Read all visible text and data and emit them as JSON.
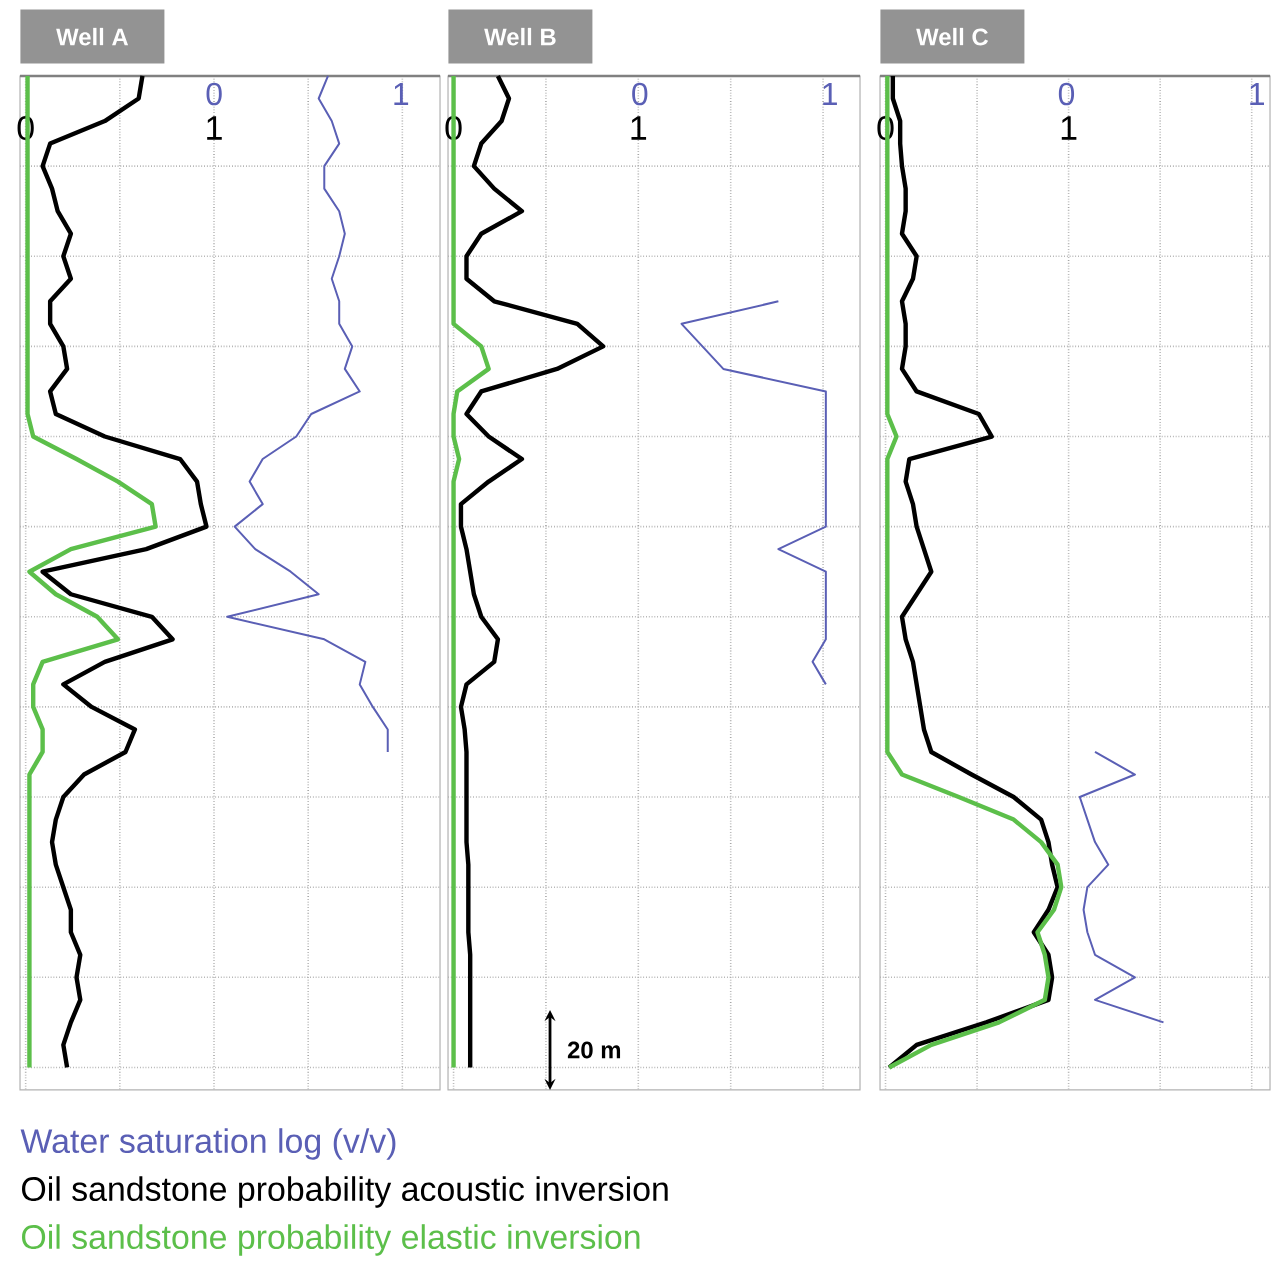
{
  "chart_data": [
    {
      "type": "line",
      "title": "Well A",
      "orientation": "horizontal",
      "legend": "bottom",
      "grid": true,
      "tick_labels": "x",
      "categories": [
        null,
        null,
        null,
        null,
        null,
        null,
        null,
        null,
        null,
        null,
        null,
        null,
        null,
        null,
        null,
        null,
        null,
        null,
        null,
        null,
        null,
        null,
        null,
        null,
        null,
        null,
        null,
        null,
        null,
        null,
        null,
        null,
        null,
        null,
        null,
        null,
        null,
        null,
        null,
        null,
        null,
        null,
        null,
        null,
        null
      ],
      "xlim": [
        -0.03,
        2.2
      ],
      "xticks": [
        0,
        {
          "value": 0.5,
          "label": null
        },
        1,
        {
          "value": 1.5,
          "label": null
        },
        {
          "value": 2,
          "label": null
        }
      ],
      "x2lim": [
        -1.04,
        1.21
      ],
      "x2ticks": [
        0,
        1
      ],
      "series": [
        {
          "name": "Water saturation log (v/v)",
          "color": "#5a5fb5",
          "axis": "x2",
          "values": [
            0.61,
            0.56,
            0.63,
            0.67,
            0.59,
            0.59,
            0.67,
            0.7,
            0.67,
            0.63,
            0.67,
            0.67,
            0.74,
            0.7,
            0.78,
            0.52,
            0.44,
            0.26,
            0.19,
            0.26,
            0.11,
            0.22,
            0.41,
            0.56,
            0.07,
            0.59,
            0.81,
            0.78,
            0.85,
            0.93,
            0.93,
            null,
            null,
            null,
            null,
            null,
            null,
            null,
            null,
            null,
            null,
            null,
            null,
            null,
            null
          ]
        },
        {
          "name": "Oil sandstone probability acoustic inversion",
          "color": "#000000",
          "values": [
            0.62,
            0.6,
            0.42,
            0.13,
            0.09,
            0.14,
            0.17,
            0.24,
            0.2,
            0.24,
            0.13,
            0.13,
            0.2,
            0.22,
            0.13,
            0.16,
            0.42,
            0.82,
            0.91,
            0.93,
            0.96,
            0.64,
            0.09,
            0.24,
            0.67,
            0.78,
            0.42,
            0.2,
            0.35,
            0.58,
            0.53,
            0.31,
            0.2,
            0.16,
            0.14,
            0.16,
            0.2,
            0.24,
            0.24,
            0.29,
            0.27,
            0.29,
            0.24,
            0.2,
            0.22
          ]
        },
        {
          "name": "Oil sandstone probability elastic inversion",
          "color": "#5cbf4a",
          "values": [
            0.01,
            0.01,
            0.01,
            0.01,
            0.01,
            0.01,
            0.01,
            0.01,
            0.01,
            0.01,
            0.01,
            0.01,
            0.01,
            0.01,
            0.01,
            0.01,
            0.04,
            0.27,
            0.49,
            0.67,
            0.69,
            0.24,
            0.02,
            0.16,
            0.38,
            0.49,
            0.09,
            0.04,
            0.04,
            0.09,
            0.09,
            0.02,
            0.02,
            0.02,
            0.02,
            0.02,
            0.02,
            0.02,
            0.02,
            0.02,
            0.02,
            0.02,
            0.02,
            0.02,
            0.02
          ]
        }
      ]
    },
    {
      "type": "line",
      "title": "Well B",
      "orientation": "horizontal",
      "grid": true,
      "tick_labels": "x",
      "annotations": [
        "20 m"
      ],
      "categories": [
        null,
        null,
        null,
        null,
        null,
        null,
        null,
        null,
        null,
        null,
        null,
        null,
        null,
        null,
        null,
        null,
        null,
        null,
        null,
        null,
        null,
        null,
        null,
        null,
        null,
        null,
        null,
        null,
        null,
        null,
        null,
        null,
        null,
        null,
        null,
        null,
        null,
        null,
        null,
        null,
        null,
        null,
        null,
        null,
        null
      ],
      "xlim": [
        -0.03,
        2.2
      ],
      "xticks": [
        0,
        {
          "value": 0.5,
          "label": null
        },
        1,
        {
          "value": 1.5,
          "label": null
        },
        {
          "value": 2,
          "label": null
        }
      ],
      "x2lim": [
        -1.01,
        1.16
      ],
      "x2ticks": [
        0,
        1
      ],
      "series": [
        {
          "color": "#5a5fb5",
          "axis": "x2",
          "values": [
            null,
            null,
            null,
            null,
            null,
            null,
            null,
            null,
            null,
            null,
            0.73,
            0.22,
            0.33,
            0.44,
            0.98,
            0.98,
            0.98,
            0.98,
            0.98,
            0.98,
            0.98,
            0.73,
            0.98,
            0.98,
            0.98,
            0.98,
            0.91,
            0.98,
            null,
            null,
            null,
            null,
            null,
            null,
            null,
            null,
            null,
            null,
            null,
            null,
            null,
            null,
            null,
            null,
            null
          ]
        },
        {
          "color": "#000000",
          "values": [
            0.24,
            0.3,
            0.26,
            0.15,
            0.11,
            0.22,
            0.37,
            0.15,
            0.07,
            0.07,
            0.22,
            0.67,
            0.81,
            0.56,
            0.15,
            0.07,
            0.19,
            0.37,
            0.19,
            0.04,
            0.04,
            0.07,
            0.09,
            0.11,
            0.15,
            0.24,
            0.22,
            0.07,
            0.04,
            0.06,
            0.07,
            0.07,
            0.07,
            0.07,
            0.07,
            0.08,
            0.08,
            0.08,
            0.08,
            0.09,
            0.09,
            0.09,
            0.09,
            0.09,
            0.09
          ]
        },
        {
          "color": "#5cbf4a",
          "values": [
            0,
            0,
            0,
            0,
            0,
            0,
            0,
            0,
            0,
            0,
            0,
            0,
            0.15,
            0.19,
            0.02,
            0,
            0,
            0.03,
            0,
            0,
            0,
            0,
            0,
            0,
            0,
            0,
            0,
            0,
            0,
            0,
            0,
            0,
            0,
            0,
            0,
            0,
            0,
            0,
            0,
            0,
            0,
            0,
            0,
            0,
            0
          ]
        }
      ]
    },
    {
      "type": "line",
      "title": "Well C",
      "orientation": "horizontal",
      "grid": true,
      "tick_labels": "x",
      "categories": [
        null,
        null,
        null,
        null,
        null,
        null,
        null,
        null,
        null,
        null,
        null,
        null,
        null,
        null,
        null,
        null,
        null,
        null,
        null,
        null,
        null,
        null,
        null,
        null,
        null,
        null,
        null,
        null,
        null,
        null,
        null,
        null,
        null,
        null,
        null,
        null,
        null,
        null,
        null,
        null,
        null,
        null,
        null,
        null,
        null
      ],
      "xlim": [
        -0.03,
        2.1
      ],
      "xticks": [
        0,
        {
          "value": 0.5,
          "label": null
        },
        1,
        {
          "value": 1.5,
          "label": null
        },
        {
          "value": 2,
          "label": null
        }
      ],
      "x2lim": [
        -0.98,
        1.07
      ],
      "x2ticks": [
        0,
        1
      ],
      "series": [
        {
          "color": "#5a5fb5",
          "axis": "x2",
          "values": [
            null,
            null,
            null,
            null,
            null,
            null,
            null,
            null,
            null,
            null,
            null,
            null,
            null,
            null,
            null,
            null,
            null,
            null,
            null,
            null,
            null,
            null,
            null,
            null,
            null,
            null,
            null,
            null,
            null,
            null,
            0.15,
            0.36,
            0.07,
            0.11,
            0.15,
            0.22,
            0.11,
            0.09,
            0.11,
            0.15,
            0.36,
            0.15,
            0.51,
            null,
            null
          ]
        },
        {
          "color": "#000000",
          "values": [
            0.04,
            0.04,
            0.08,
            0.08,
            0.09,
            0.11,
            0.11,
            0.09,
            0.17,
            0.15,
            0.09,
            0.11,
            0.11,
            0.09,
            0.17,
            0.51,
            0.58,
            0.13,
            0.11,
            0.15,
            0.17,
            0.21,
            0.25,
            0.17,
            0.09,
            0.11,
            0.15,
            0.17,
            0.19,
            0.21,
            0.25,
            0.47,
            0.7,
            0.85,
            0.89,
            0.91,
            0.94,
            0.89,
            0.81,
            0.89,
            0.91,
            0.89,
            0.55,
            0.17,
            0.02
          ]
        },
        {
          "color": "#5cbf4a",
          "values": [
            0.01,
            0.01,
            0.01,
            0.01,
            0.01,
            0.01,
            0.01,
            0.01,
            0.01,
            0.01,
            0.01,
            0.01,
            0.01,
            0.01,
            0.01,
            0.01,
            0.06,
            0.01,
            0.01,
            0.01,
            0.01,
            0.01,
            0.01,
            0.01,
            0.01,
            0.01,
            0.01,
            0.01,
            0.01,
            0.01,
            0.01,
            0.09,
            0.4,
            0.7,
            0.85,
            0.94,
            0.96,
            0.92,
            0.83,
            0.87,
            0.89,
            0.87,
            0.62,
            0.25,
            0.02
          ]
        }
      ]
    }
  ]
}
